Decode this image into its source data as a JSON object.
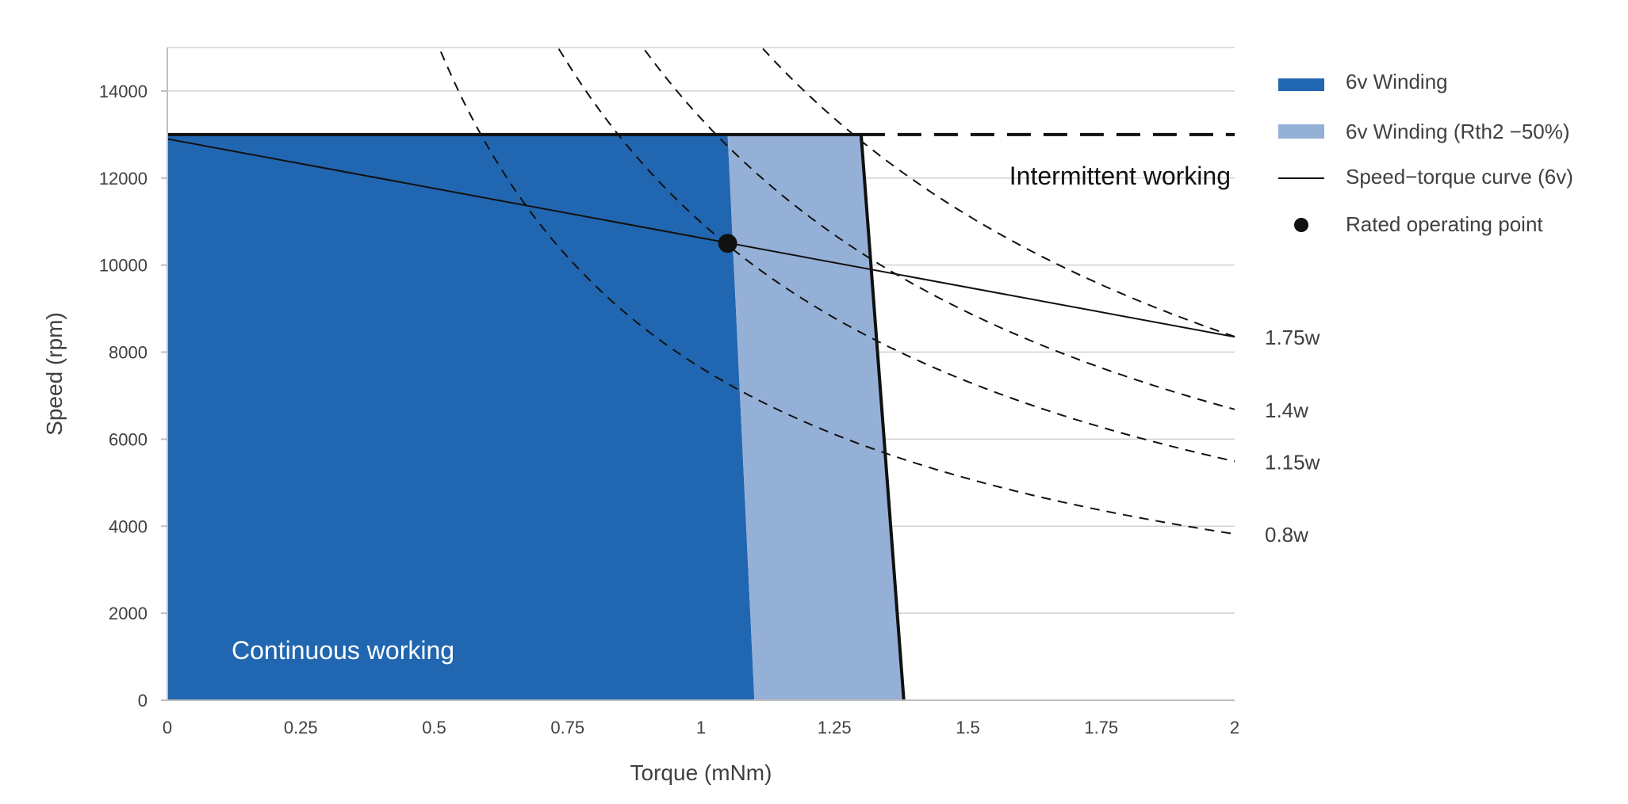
{
  "chart_data": {
    "type": "area",
    "xlabel": "Torque (mNm)",
    "ylabel": "Speed (rpm)",
    "xlim": [
      0,
      2
    ],
    "ylim": [
      0,
      15000
    ],
    "x_ticks": [
      "0",
      "0.25",
      "0.5",
      "0.75",
      "1",
      "1.25",
      "1.5",
      "1.75",
      "2"
    ],
    "y_ticks": [
      "0",
      "2000",
      "4000",
      "6000",
      "8000",
      "10000",
      "12000",
      "14000"
    ],
    "grid": "horizontal",
    "legend_position": "right",
    "max_speed": 13000,
    "regions": [
      {
        "name": "6v Winding",
        "color": "#2166b0",
        "points": [
          [
            0,
            0
          ],
          [
            0,
            13000
          ],
          [
            1.05,
            13000
          ],
          [
            1.1,
            0
          ]
        ]
      },
      {
        "name": "6v Winding (Rth2 −50%)",
        "color": "#95b0d6",
        "points": [
          [
            1.05,
            13000
          ],
          [
            1.3,
            13000
          ],
          [
            1.38,
            0
          ],
          [
            1.1,
            0
          ]
        ]
      }
    ],
    "limit_line": [
      [
        1.3,
        13000
      ],
      [
        1.38,
        0
      ]
    ],
    "series": [
      {
        "name": "Speed−torque curve (6v)",
        "x": [
          0,
          2
        ],
        "y": [
          12900,
          8350
        ]
      }
    ],
    "rated_point": {
      "name": "Rated operating point",
      "x": 1.05,
      "y": 10500
    },
    "power_curves": [
      {
        "label": "1.75w",
        "watts": 1.75
      },
      {
        "label": "1.4w",
        "watts": 1.4
      },
      {
        "label": "1.15w",
        "watts": 1.15
      },
      {
        "label": "0.8w",
        "watts": 0.8
      }
    ],
    "annotations": {
      "continuous": "Continuous working",
      "intermittent": "Intermittent working"
    }
  }
}
